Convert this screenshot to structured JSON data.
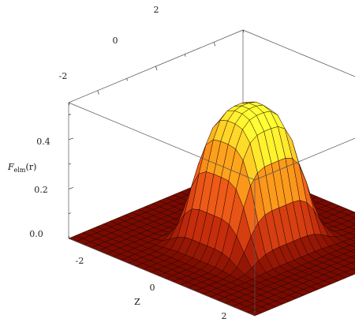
{
  "chart_data": {
    "type": "surface3d",
    "title": "",
    "xlabel": "",
    "ylabel": "Z",
    "zlabel": "F_elm(r)",
    "zlabel_main": "F",
    "zlabel_sub": "elm",
    "zlabel_arg": "(r)",
    "xlim": [
      -3,
      3
    ],
    "ylim": [
      -3,
      3
    ],
    "zlim": [
      0,
      0.55
    ],
    "x_ticks": [
      "-2",
      "0",
      "2"
    ],
    "y_ticks": [
      "-2",
      "0",
      "2"
    ],
    "z_ticks": [
      "0.0",
      "0.2",
      "0.4"
    ],
    "grid_size": 25,
    "surface_model": {
      "peak": 0.55,
      "x_width": 1.3,
      "y_width": 1.1,
      "ripple": 0.06
    },
    "colormap": [
      "#7a0a00",
      "#c22a0c",
      "#ee5a18",
      "#ffaa1c",
      "#ffff33"
    ],
    "box_visible": true,
    "grid": false
  }
}
